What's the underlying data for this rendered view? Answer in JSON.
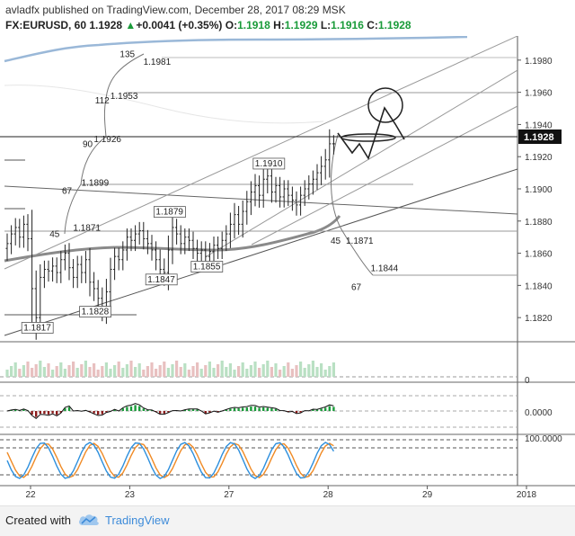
{
  "header": {
    "author": "avladfx",
    "published_text": "published on TradingView.com, December 28, 2017 08:29 MSK",
    "symbol": "FX:EURUSD, 60",
    "price": "1.1928",
    "change_arrow": "▲",
    "change": "+0.0041 (+0.35%)",
    "o_label": "O:",
    "o_value": "1.1918",
    "h_label": "H:",
    "h_value": "1.1929",
    "l_label": "L:",
    "l_value": "1.1916",
    "c_label": "C:",
    "c_value": "1.1928"
  },
  "footer": {
    "created_with": "Created with",
    "brand": "TradingView",
    "logo_icon": "tradingview-cloud-icon"
  },
  "colors": {
    "up": "#1a9b3a",
    "down": "#8b1a1a",
    "candle": "#222222",
    "accent": "#3d8bd9",
    "stoch_k": "#2d8fdd",
    "stoch_d": "#f08a24"
  },
  "chart_data": {
    "type": "candlestick",
    "symbol": "FX:EURUSD",
    "interval": "60",
    "ylim": [
      1.1805,
      1.1995
    ],
    "y_ticks": [
      "1.1820",
      "1.1840",
      "1.1860",
      "1.1880",
      "1.1900",
      "1.1920",
      "1.1940",
      "1.1960",
      "1.1980"
    ],
    "current_price": "1.1928",
    "x_ticks": [
      "22",
      "23",
      "27",
      "28",
      "29",
      "2018"
    ],
    "x_tick_bars": [
      0,
      24,
      48,
      72,
      96,
      120
    ],
    "bar_count": 80,
    "closes": [
      1.1866,
      1.1872,
      1.1876,
      1.187,
      1.1878,
      1.1869,
      1.1838,
      1.182,
      1.1845,
      1.185,
      1.1849,
      1.1852,
      1.1848,
      1.1856,
      1.186,
      1.1851,
      1.1845,
      1.1853,
      1.1848,
      1.1856,
      1.1842,
      1.1838,
      1.1832,
      1.1826,
      1.1836,
      1.185,
      1.1858,
      1.1856,
      1.1862,
      1.187,
      1.1868,
      1.1872,
      1.1874,
      1.1869,
      1.1866,
      1.1862,
      1.1856,
      1.185,
      1.1848,
      1.1862,
      1.1876,
      1.1872,
      1.1866,
      1.187,
      1.1868,
      1.1863,
      1.186,
      1.1862,
      1.1858,
      1.1861,
      1.1865,
      1.1863,
      1.1868,
      1.1872,
      1.1878,
      1.1884,
      1.1878,
      1.1886,
      1.1892,
      1.1898,
      1.1902,
      1.1896,
      1.1906,
      1.1908,
      1.1898,
      1.1902,
      1.1895,
      1.19,
      1.1896,
      1.1893,
      1.189,
      1.1896,
      1.19,
      1.1903,
      1.1906,
      1.191,
      1.1914,
      1.1918,
      1.1928,
      1.1928
    ],
    "ranges": [
      0.0014,
      0.0012,
      0.0013,
      0.0012,
      0.0012,
      0.0014,
      0.004,
      0.0025,
      0.0018,
      0.0012,
      0.0012,
      0.0012,
      0.0012,
      0.0012,
      0.0012,
      0.0014,
      0.0012,
      0.0012,
      0.0012,
      0.0012,
      0.0016,
      0.0014,
      0.0012,
      0.0015,
      0.0018,
      0.0016,
      0.0012,
      0.0012,
      0.0012,
      0.0012,
      0.0012,
      0.0012,
      0.0012,
      0.0012,
      0.0012,
      0.0012,
      0.0012,
      0.0014,
      0.0015,
      0.002,
      0.0016,
      0.0012,
      0.0012,
      0.0012,
      0.0012,
      0.0012,
      0.0012,
      0.0012,
      0.0012,
      0.0012,
      0.0012,
      0.0012,
      0.0012,
      0.0012,
      0.0016,
      0.0016,
      0.0012,
      0.0015,
      0.0015,
      0.0015,
      0.0016,
      0.0014,
      0.0014,
      0.0016,
      0.0012,
      0.0012,
      0.0012,
      0.0012,
      0.0012,
      0.0012,
      0.0012,
      0.0012,
      0.0012,
      0.0012,
      0.0012,
      0.0012,
      0.0014,
      0.0015,
      0.002,
      0.0012
    ],
    "price_labels": [
      {
        "text": "1.1817",
        "bar": 7,
        "price": 1.1812,
        "boxed": true
      },
      {
        "text": "1.1828",
        "bar": 21,
        "price": 1.1822,
        "boxed": true
      },
      {
        "text": "1.1847",
        "bar": 37,
        "price": 1.1842,
        "boxed": true
      },
      {
        "text": "1.1855",
        "bar": 48,
        "price": 1.185,
        "boxed": true
      },
      {
        "text": "1.1879",
        "bar": 39,
        "price": 1.1884,
        "boxed": true
      },
      {
        "text": "1.1910",
        "bar": 63,
        "price": 1.1914,
        "boxed": true
      },
      {
        "text": "1.1871",
        "bar": 19,
        "price": 1.1874,
        "boxed": false
      },
      {
        "text": "1.1899",
        "bar": 21,
        "price": 1.1902,
        "boxed": false
      },
      {
        "text": "1.1926",
        "bar": 24,
        "price": 1.1929,
        "boxed": false
      },
      {
        "text": "1.1953",
        "bar": 28,
        "price": 1.1956,
        "boxed": false
      },
      {
        "text": "1.1981",
        "bar": 36,
        "price": 1.1977,
        "boxed": false
      },
      {
        "text": "1.1871",
        "bar": 85,
        "price": 1.1866,
        "boxed": false
      },
      {
        "text": "1.1844",
        "bar": 91,
        "price": 1.1849,
        "boxed": false
      }
    ],
    "angle_labels": [
      {
        "text": "135",
        "bar": 29,
        "price": 1.1982
      },
      {
        "text": "112",
        "bar": 23,
        "price": 1.1953
      },
      {
        "text": "90",
        "bar": 20,
        "price": 1.1926
      },
      {
        "text": "67",
        "bar": 15,
        "price": 1.1897
      },
      {
        "text": "45",
        "bar": 12,
        "price": 1.187
      },
      {
        "text": "45",
        "bar": 80,
        "price": 1.1866
      },
      {
        "text": "67",
        "bar": 85,
        "price": 1.1837
      }
    ],
    "volume": {
      "label": "0"
    },
    "macd": {
      "label": "0.0000"
    },
    "stochastic": {
      "label": "100.0000"
    }
  }
}
